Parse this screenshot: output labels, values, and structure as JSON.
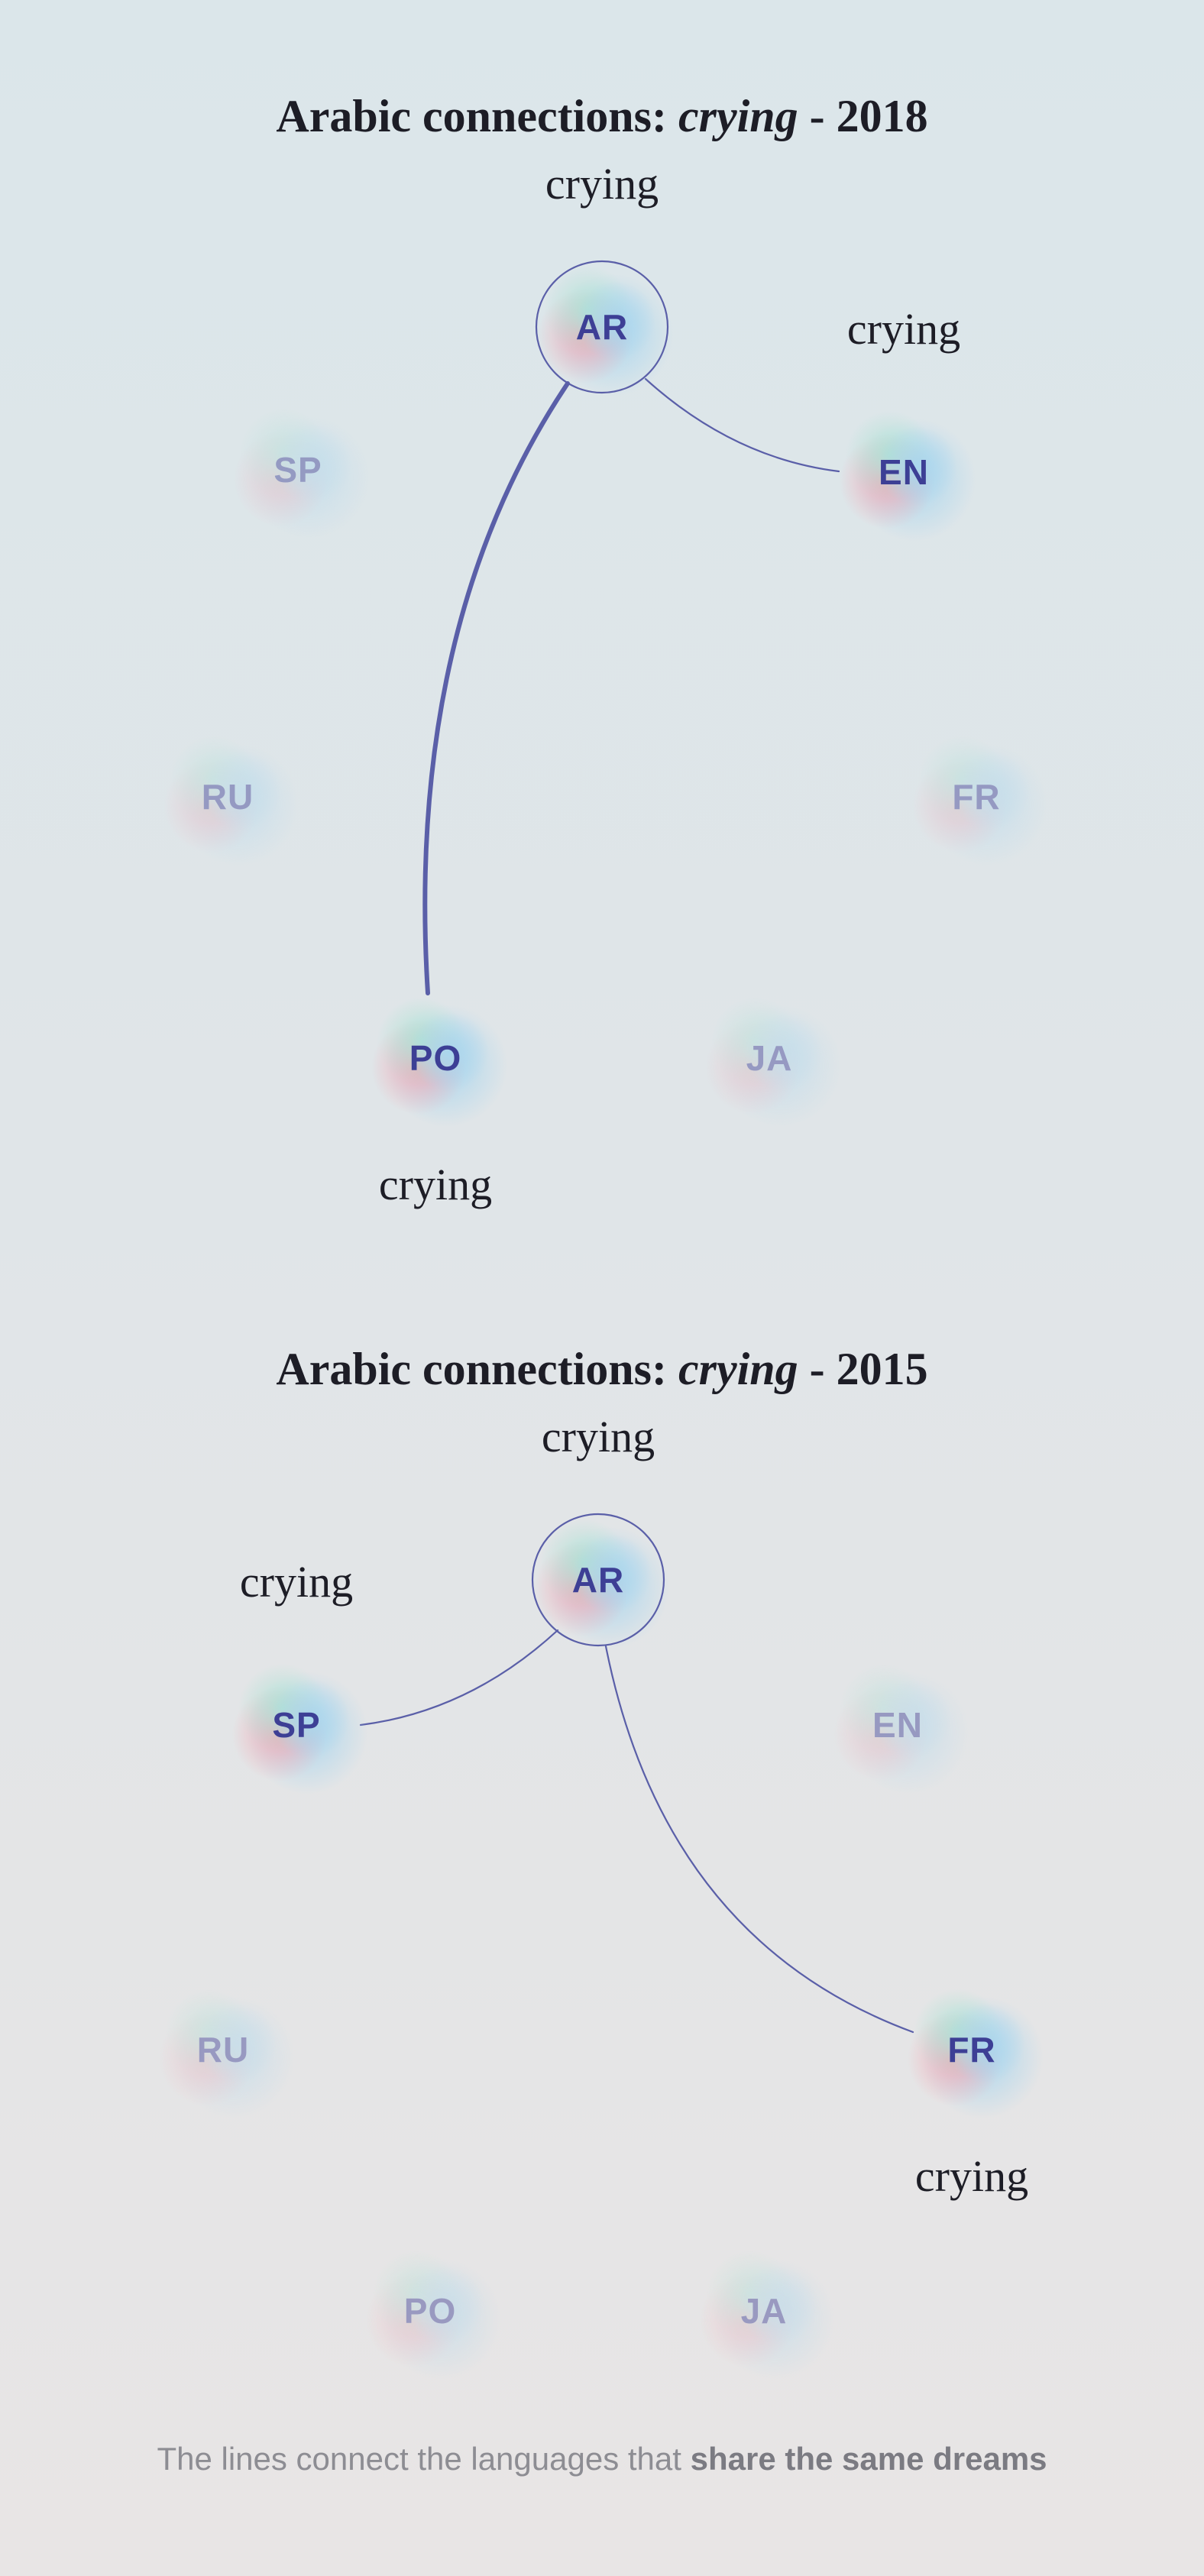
{
  "colors": {
    "node_text": "#3d3f95",
    "link": "#5a5fa8",
    "inactive_opacity": 0.45
  },
  "panels": [
    {
      "title_prefix": "Arabic connections: ",
      "title_word": "crying",
      "title_suffix": " - 2018",
      "nodes": [
        {
          "code": "AR",
          "state": "source",
          "word": "crying",
          "word_pos": "above"
        },
        {
          "code": "SP",
          "state": "inactive"
        },
        {
          "code": "EN",
          "state": "active",
          "word": "crying",
          "word_pos": "above"
        },
        {
          "code": "RU",
          "state": "inactive"
        },
        {
          "code": "FR",
          "state": "inactive"
        },
        {
          "code": "PO",
          "state": "active",
          "word": "crying",
          "word_pos": "below"
        },
        {
          "code": "JA",
          "state": "inactive"
        }
      ],
      "links": [
        {
          "from": "AR",
          "to": "EN",
          "strength": "thin"
        },
        {
          "from": "AR",
          "to": "PO",
          "strength": "thick"
        }
      ]
    },
    {
      "title_prefix": "Arabic connections: ",
      "title_word": "crying",
      "title_suffix": " - 2015",
      "nodes": [
        {
          "code": "AR",
          "state": "source",
          "word": "crying",
          "word_pos": "above"
        },
        {
          "code": "SP",
          "state": "active",
          "word": "crying",
          "word_pos": "above"
        },
        {
          "code": "EN",
          "state": "inactive"
        },
        {
          "code": "RU",
          "state": "inactive"
        },
        {
          "code": "FR",
          "state": "active",
          "word": "crying",
          "word_pos": "below"
        },
        {
          "code": "PO",
          "state": "inactive"
        },
        {
          "code": "JA",
          "state": "inactive"
        }
      ],
      "links": [
        {
          "from": "AR",
          "to": "SP",
          "strength": "thin"
        },
        {
          "from": "AR",
          "to": "FR",
          "strength": "thin"
        }
      ]
    }
  ],
  "footer": {
    "prefix": "The lines connect the languages that ",
    "emphasis": "share the same dreams"
  }
}
